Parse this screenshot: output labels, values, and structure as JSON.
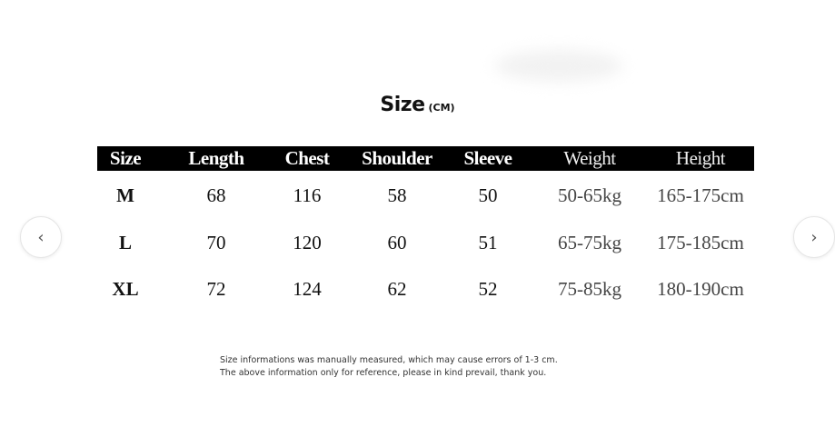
{
  "title": {
    "main": "Size",
    "unit": "(CM)"
  },
  "table": {
    "headers": [
      "Size",
      "Length",
      "Chest",
      "Shoulder",
      "Sleeve",
      "Weight",
      "Height"
    ],
    "rows": [
      [
        "M",
        "68",
        "116",
        "58",
        "50",
        "50-65kg",
        "165-175cm"
      ],
      [
        "L",
        "70",
        "120",
        "60",
        "51",
        "65-75kg",
        "175-185cm"
      ],
      [
        "XL",
        "72",
        "124",
        "62",
        "52",
        "75-85kg",
        "180-190cm"
      ]
    ]
  },
  "notes": [
    "Size informations was manually measured, which may cause errors of 1-3 cm.",
    "The above information only for reference, please in kind prevail, thank you."
  ],
  "nav": {
    "prev_icon": "chevron-left-icon",
    "next_icon": "chevron-right-icon",
    "prev": "‹",
    "next": "›"
  }
}
